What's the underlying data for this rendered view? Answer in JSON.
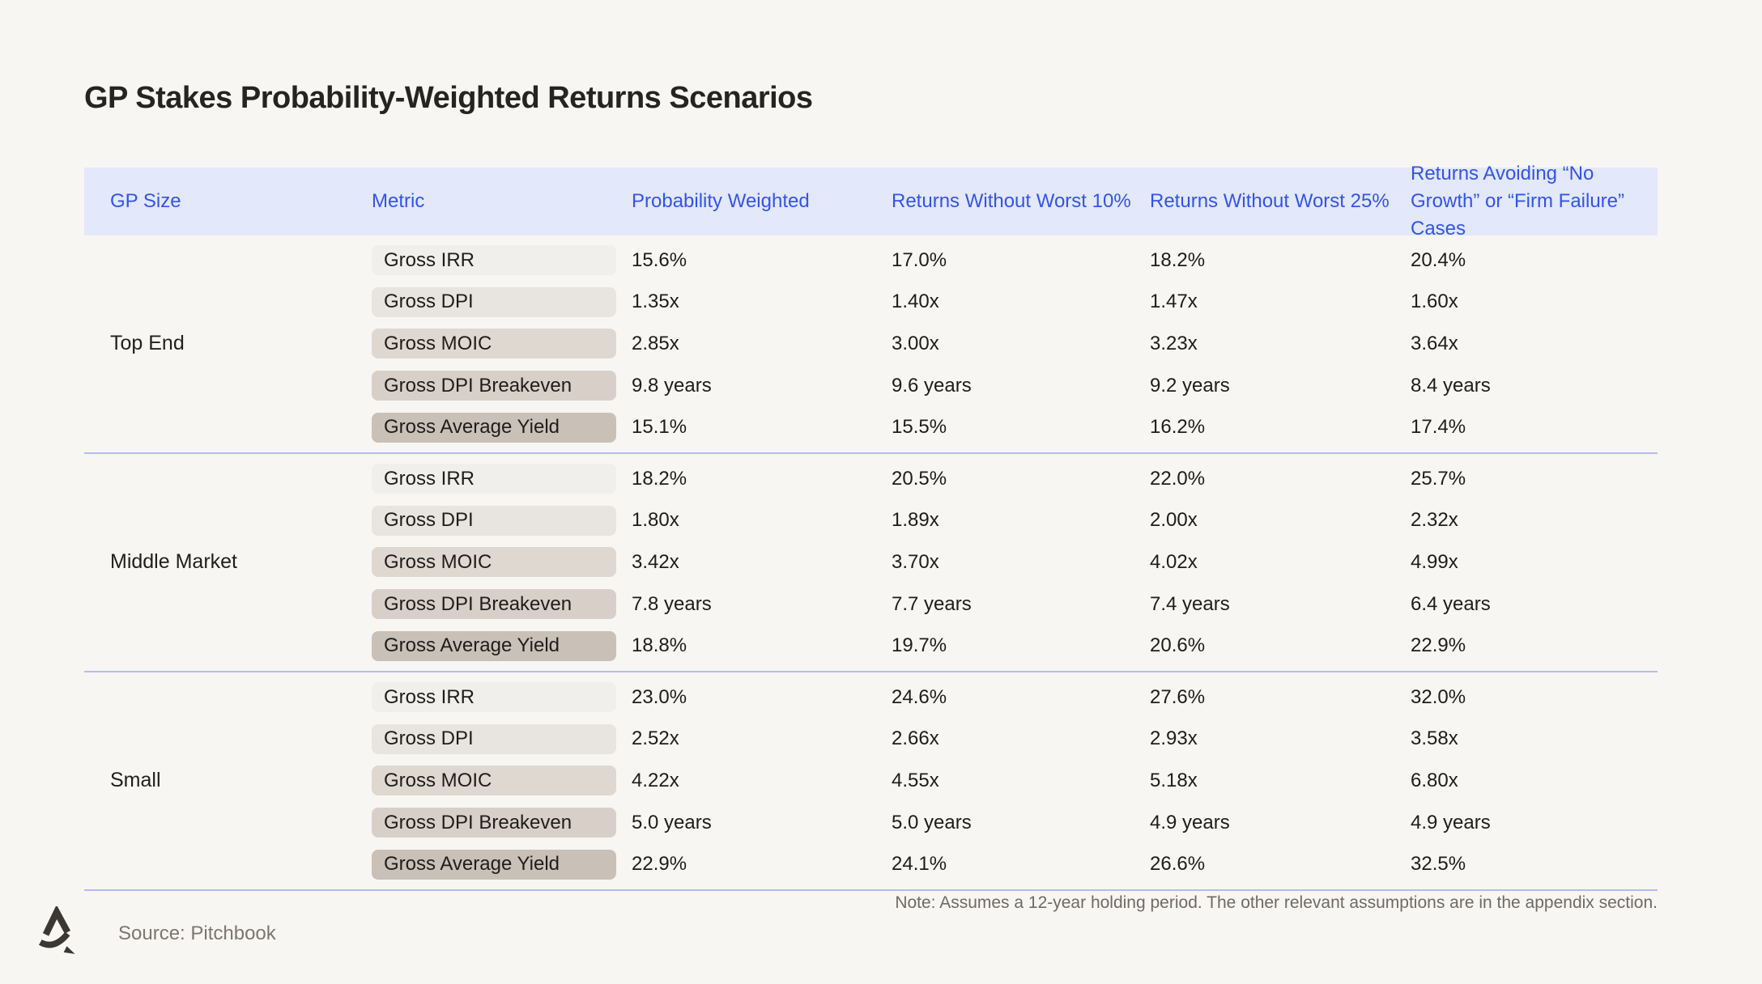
{
  "page": {
    "title": "GP Stakes Probability-Weighted Returns Scenarios",
    "note": "Note: Assumes a 12-year holding period. The other relevant assumptions are in the appendix section.",
    "source": "Source: Pitchbook",
    "logo": "stylized-a-mark"
  },
  "colors": {
    "background": "#f8f6f3",
    "header_bg": "#e3e8fb",
    "accent_blue": "#3354e8",
    "separator": "#b3bcf2",
    "text_dark": "#211f1c",
    "note_gray": "#6e6a66",
    "logo_color": "#3b3834",
    "pill_shades": [
      "#f1efec",
      "#e8e4e0",
      "#ded8d1",
      "#d8d0c8",
      "#c9c0b7"
    ]
  },
  "chart_data": {
    "type": "table",
    "title": "GP Stakes Probability-Weighted Returns Scenarios",
    "columns": [
      "GP Size",
      "Metric",
      "Probability Weighted",
      "Returns Without Worst 10%",
      "Returns Without Worst 25%",
      "Returns Avoiding “No Growth” or “Firm Failure” Cases"
    ],
    "groups": [
      {
        "name": "Top End",
        "rows": [
          {
            "metric": "Gross IRR",
            "values": [
              "15.6%",
              "17.0%",
              "18.2%",
              "20.4%"
            ]
          },
          {
            "metric": "Gross DPI",
            "values": [
              "1.35x",
              "1.40x",
              "1.47x",
              "1.60x"
            ]
          },
          {
            "metric": "Gross MOIC",
            "values": [
              "2.85x",
              "3.00x",
              "3.23x",
              "3.64x"
            ]
          },
          {
            "metric": "Gross DPI Breakeven",
            "values": [
              "9.8 years",
              "9.6 years",
              "9.2 years",
              "8.4 years"
            ]
          },
          {
            "metric": "Gross Average Yield",
            "values": [
              "15.1%",
              "15.5%",
              "16.2%",
              "17.4%"
            ]
          }
        ]
      },
      {
        "name": "Middle Market",
        "rows": [
          {
            "metric": "Gross IRR",
            "values": [
              "18.2%",
              "20.5%",
              "22.0%",
              "25.7%"
            ]
          },
          {
            "metric": "Gross DPI",
            "values": [
              "1.80x",
              "1.89x",
              "2.00x",
              "2.32x"
            ]
          },
          {
            "metric": "Gross MOIC",
            "values": [
              "3.42x",
              "3.70x",
              "4.02x",
              "4.99x"
            ]
          },
          {
            "metric": "Gross DPI Breakeven",
            "values": [
              "7.8 years",
              "7.7 years",
              "7.4 years",
              "6.4 years"
            ]
          },
          {
            "metric": "Gross Average Yield",
            "values": [
              "18.8%",
              "19.7%",
              "20.6%",
              "22.9%"
            ]
          }
        ]
      },
      {
        "name": "Small",
        "rows": [
          {
            "metric": "Gross IRR",
            "values": [
              "23.0%",
              "24.6%",
              "27.6%",
              "32.0%"
            ]
          },
          {
            "metric": "Gross DPI",
            "values": [
              "2.52x",
              "2.66x",
              "2.93x",
              "3.58x"
            ]
          },
          {
            "metric": "Gross MOIC",
            "values": [
              "4.22x",
              "4.55x",
              "5.18x",
              "6.80x"
            ]
          },
          {
            "metric": "Gross DPI Breakeven",
            "values": [
              "5.0 years",
              "5.0 years",
              "4.9 years",
              "4.9 years"
            ]
          },
          {
            "metric": "Gross Average Yield",
            "values": [
              "22.9%",
              "24.1%",
              "26.6%",
              "32.5%"
            ]
          }
        ]
      }
    ]
  }
}
